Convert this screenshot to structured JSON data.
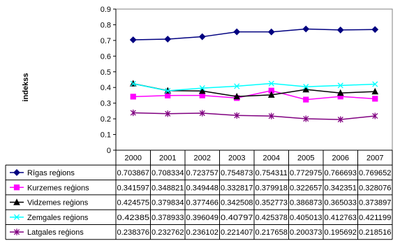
{
  "chart_data": {
    "type": "line",
    "title": "",
    "xlabel": "",
    "ylabel": "indekss",
    "ylim": [
      0,
      0.9
    ],
    "yticks": [
      "0",
      "0.1",
      "0.2",
      "0.3",
      "0.4",
      "0.5",
      "0.6",
      "0.7",
      "0.8",
      "0.9"
    ],
    "grid": false,
    "legend": "data table below chart",
    "categories": [
      "2000",
      "2001",
      "2002",
      "2003",
      "2004",
      "2005",
      "2006",
      "2007"
    ],
    "series": [
      {
        "name": "Rīgas reģions",
        "color": "#000080",
        "marker": "diamond",
        "values": [
          0.703867,
          0.708334,
          0.723757,
          0.754873,
          0.754311,
          0.772975,
          0.766693,
          0.769652
        ],
        "labels": [
          "0.703867",
          "0.708334",
          "0.723757",
          "0.754873",
          "0.754311",
          "0.772975",
          "0.766693",
          "0.769652"
        ]
      },
      {
        "name": "Kurzemes reģions",
        "color": "#FF00FF",
        "marker": "square",
        "values": [
          0.341597,
          0.348821,
          0.349448,
          0.332817,
          0.379918,
          0.322657,
          0.342351,
          0.328076
        ],
        "labels": [
          "0.341597",
          "0.348821",
          "0.349448",
          "0.332817",
          "0.379918",
          "0.322657",
          "0.342351",
          "0.328076"
        ]
      },
      {
        "name": "Vidzemes reģions",
        "color": "#000000",
        "marker": "triangle",
        "values": [
          0.424575,
          0.379834,
          0.377466,
          0.342508,
          0.352773,
          0.386873,
          0.365033,
          0.373897
        ],
        "labels": [
          "0.424575",
          "0.379834",
          "0.377466",
          "0.342508",
          "0.352773",
          "0.386873",
          "0.365033",
          "0.373897"
        ]
      },
      {
        "name": "Zemgales reģions",
        "color": "#00FFFF",
        "marker": "x",
        "values": [
          0.42385,
          0.378933,
          0.396049,
          0.40797,
          0.425378,
          0.405013,
          0.412763,
          0.421199
        ],
        "labels": [
          "0.42385",
          "0.378933",
          "0.396049",
          "0.40797",
          "0.425378",
          "0.405013",
          "0.412763",
          "0.421199"
        ]
      },
      {
        "name": "Latgales reģions",
        "color": "#800080",
        "marker": "star",
        "values": [
          0.238376,
          0.232762,
          0.236102,
          0.221407,
          0.217658,
          0.200373,
          0.195692,
          0.218516
        ],
        "labels": [
          "0.238376",
          "0.232762",
          "0.236102",
          "0.221407",
          "0.217658",
          "0.200373",
          "0.195692",
          "0.218516"
        ]
      }
    ]
  }
}
